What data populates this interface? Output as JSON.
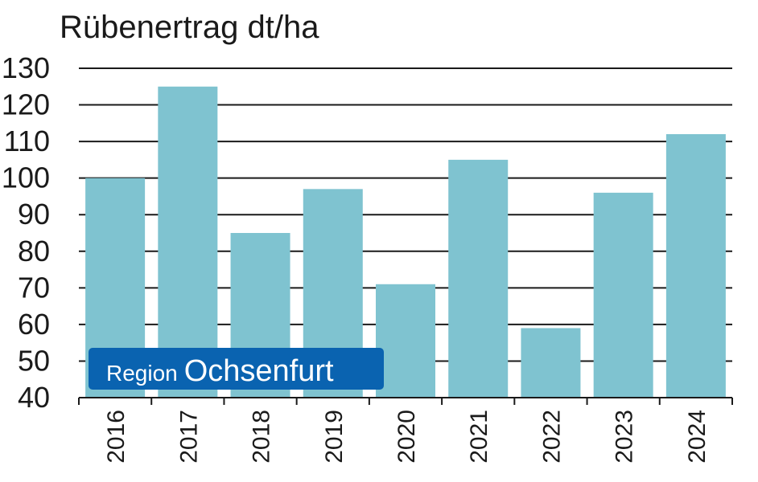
{
  "chart_data": {
    "type": "bar",
    "title": "Rübenertrag dt/ha",
    "xlabel": "",
    "ylabel": "",
    "categories": [
      "2016",
      "2017",
      "2018",
      "2019",
      "2020",
      "2021",
      "2022",
      "2023",
      "2024"
    ],
    "values": [
      100,
      125,
      85,
      97,
      71,
      105,
      59,
      96,
      112
    ],
    "ylim": [
      40,
      130
    ],
    "yticks": [
      40,
      50,
      60,
      70,
      80,
      90,
      100,
      110,
      120,
      130
    ],
    "grid": true,
    "bar_color": "#7fc3d0",
    "label_orientation": "vertical"
  },
  "badge": {
    "prefix": "Region",
    "name": "Ochsenfurt",
    "color": "#0a63b0"
  }
}
